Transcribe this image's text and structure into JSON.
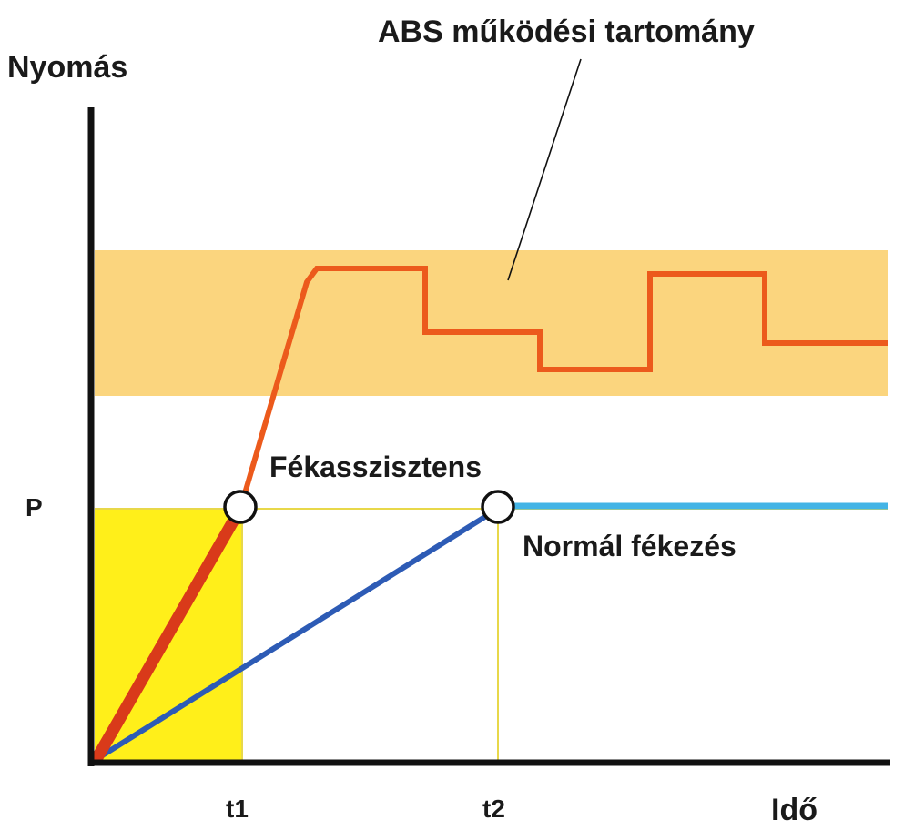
{
  "labels": {
    "y_axis": "Nyomás",
    "x_axis": "Idő",
    "abs_range": "ABS működési tartomány",
    "brake_assist": "Fékasszisztens",
    "normal_braking": "Normál fékezés",
    "pressure_level": "P",
    "t1": "t1",
    "t2": "t2"
  },
  "colors": {
    "abs_band": "#fbd57e",
    "assist_area": "#ffef1a",
    "assist_ramp": "#d93a1a",
    "assist_rise": "#f0702e",
    "abs_cycle": "#ec5a1c",
    "normal_ramp": "#2d5bb5",
    "normal_hold": "#43b4e6",
    "axis": "#111111",
    "guide": "#e8d84a"
  }
}
